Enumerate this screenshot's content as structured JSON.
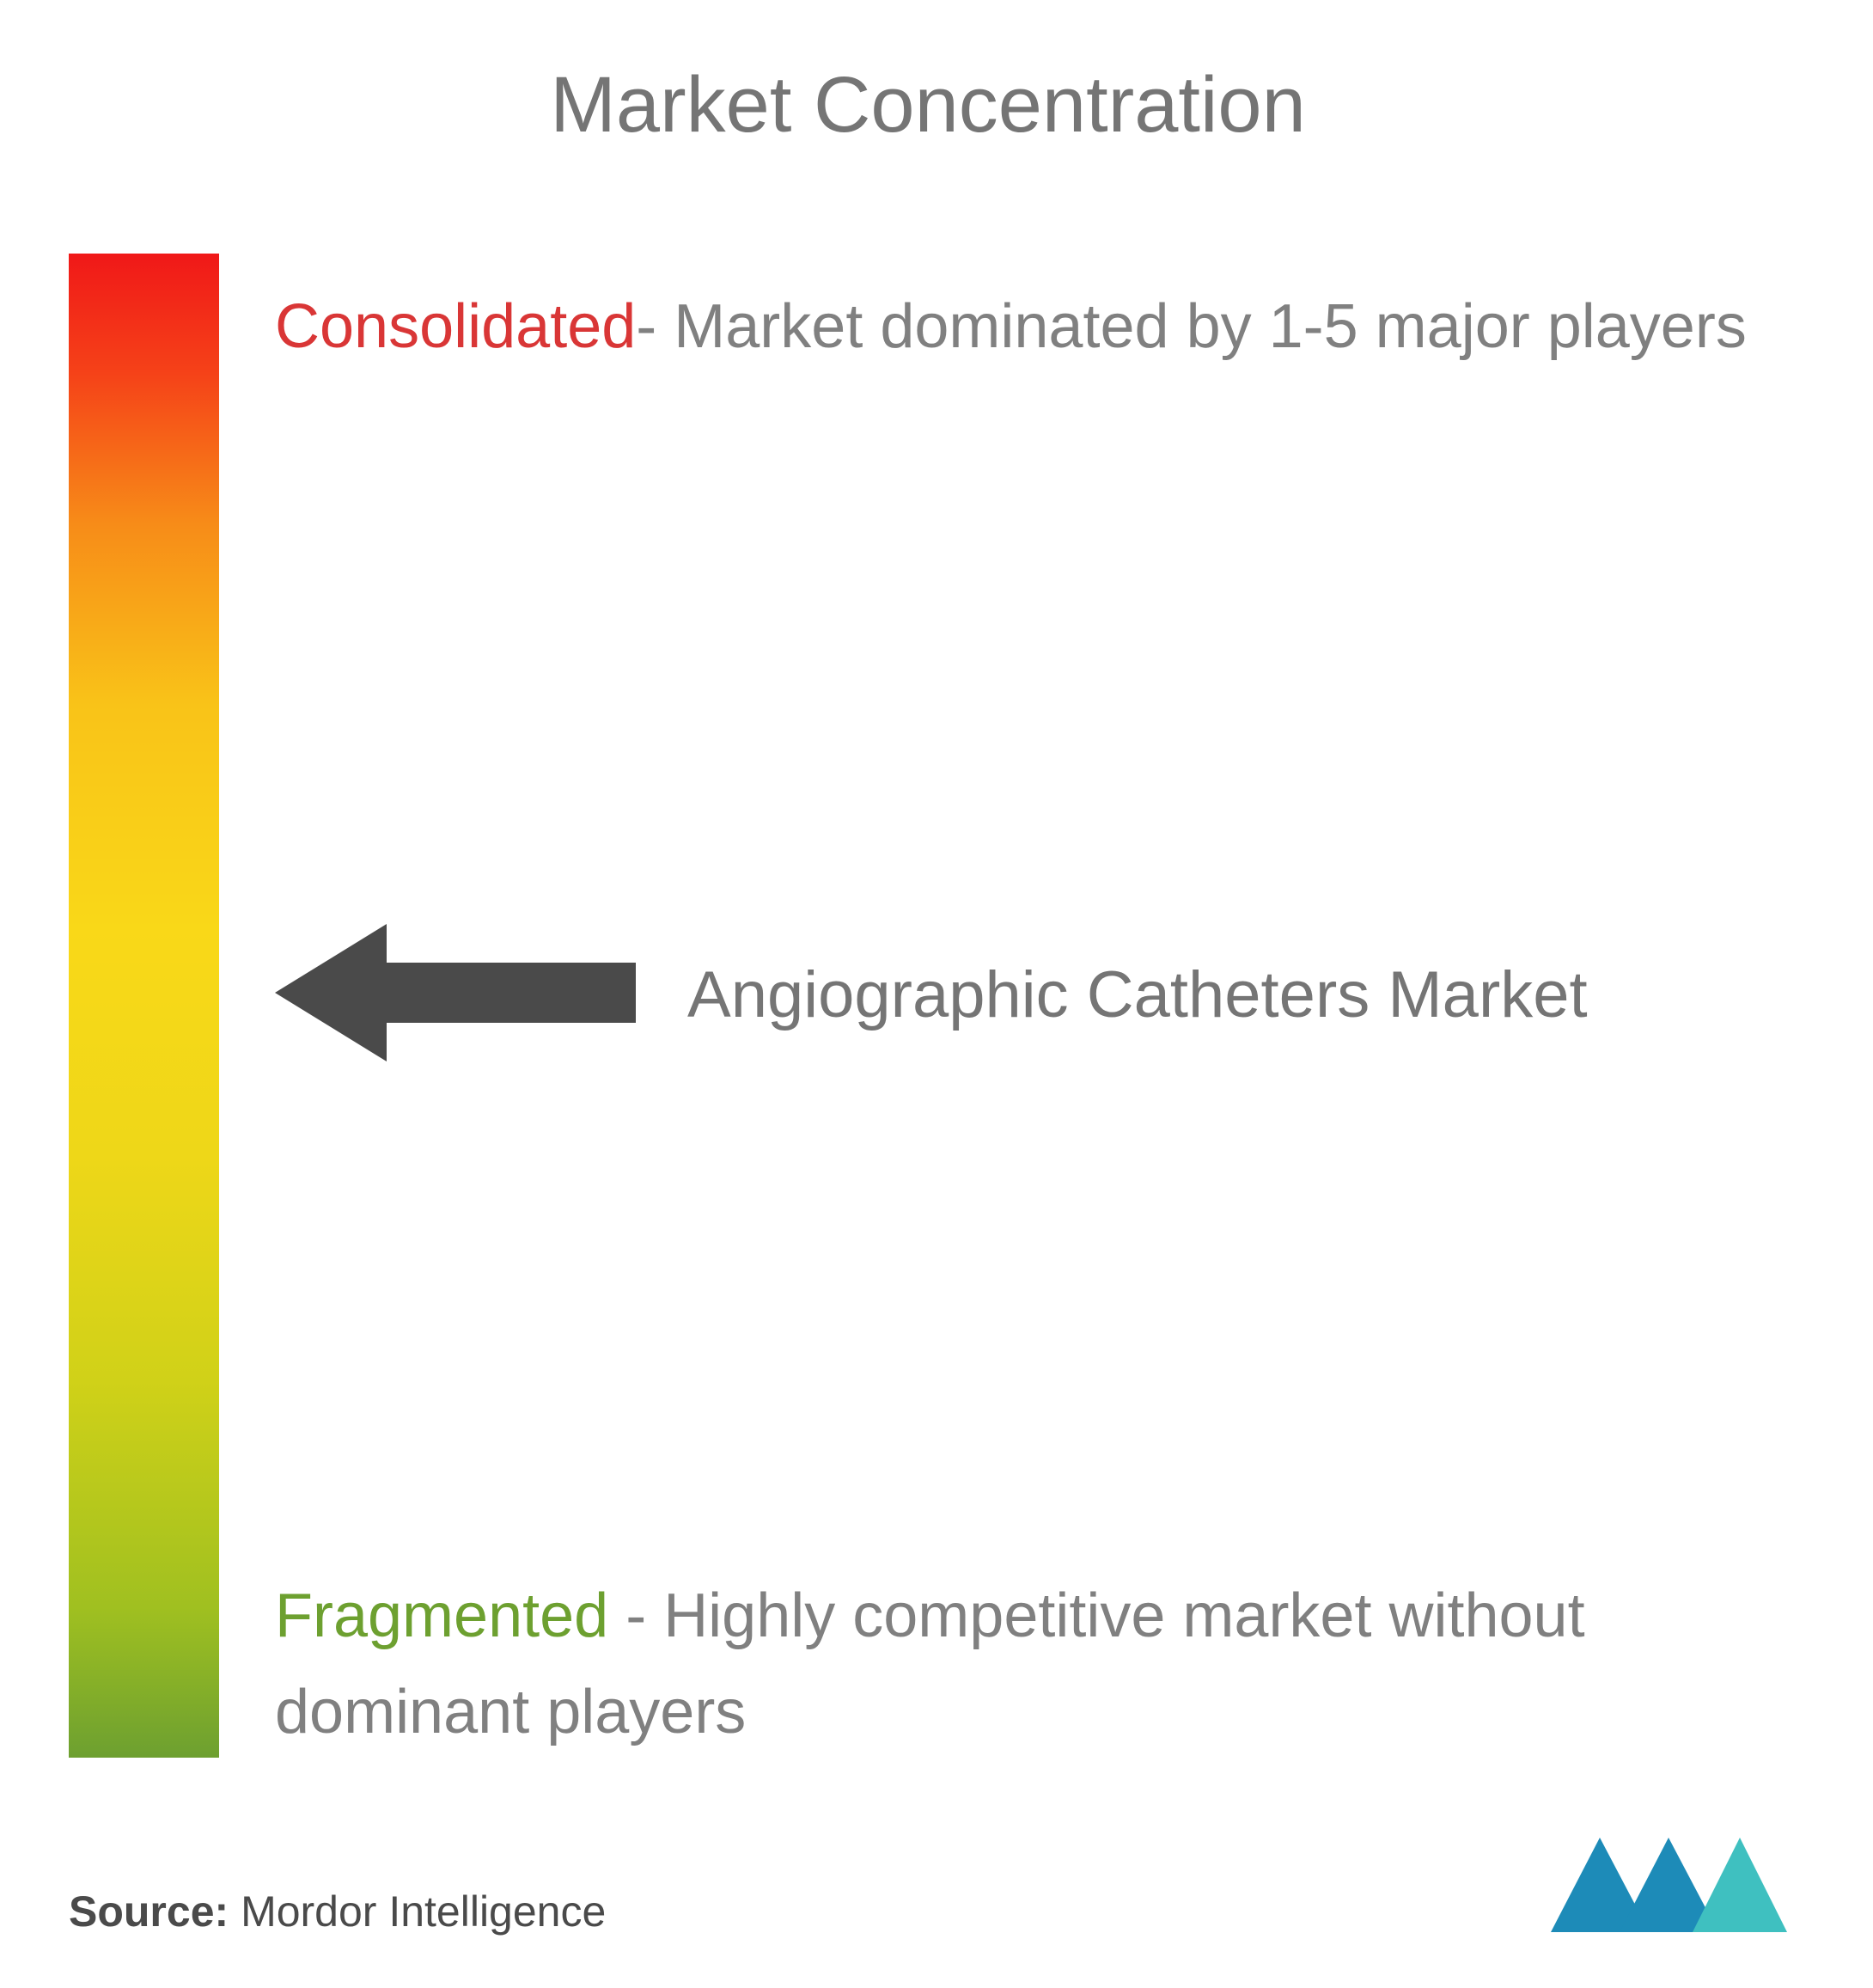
{
  "title": "Market Concentration",
  "gradient": {
    "colors": [
      "#f01818",
      "#f54218",
      "#f78c18",
      "#f9c318",
      "#f9d818",
      "#eed718",
      "#d0d118",
      "#a0c020",
      "#6da030"
    ],
    "stops": [
      0,
      8,
      18,
      30,
      45,
      60,
      75,
      90,
      100
    ]
  },
  "top": {
    "highlight": "Consolidated",
    "highlight_color": "#d93636",
    "separator": "- ",
    "desc": "Market dominated by 1-5 major players"
  },
  "middle": {
    "arrow_color": "#4a4a4a",
    "market_name": "Angiographic Catheters Market",
    "arrow_position_percent": 47
  },
  "bottom": {
    "highlight": "Fragmented",
    "highlight_color": "#6da030",
    "separator": " - ",
    "desc": "Highly competitive market without dominant players"
  },
  "source": {
    "label": "Source: ",
    "name": "Mordor Intelligence"
  },
  "logo": {
    "color1": "#1d8bb8",
    "color2": "#3fc0c0"
  },
  "background_color": "#ffffff",
  "title_color": "#757575",
  "desc_color": "#808080"
}
